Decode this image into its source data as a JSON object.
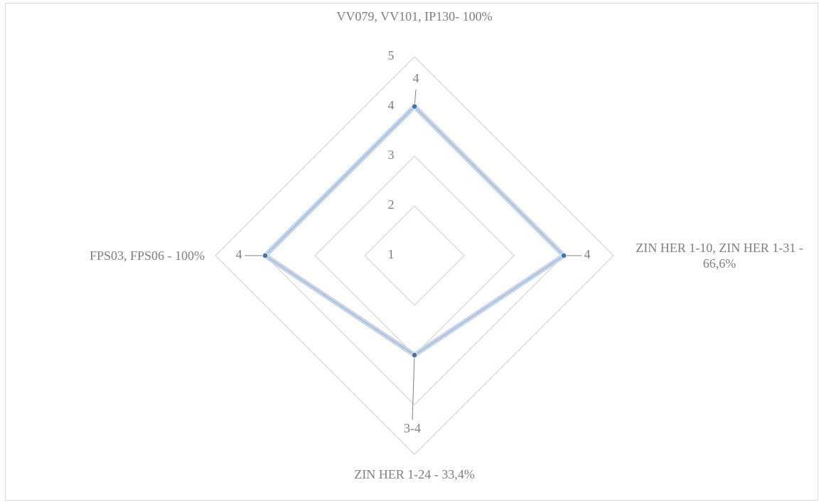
{
  "chart_data": {
    "type": "radar",
    "categories": [
      "VV079, VV101, IP130- 100%",
      "ZIN HER 1-10, ZIN HER 1-31 - 66,6%",
      "ZIN HER 1-24 - 33,4%",
      "FPS03, FPS06 - 100%"
    ],
    "series": [
      {
        "color": "#4a72a8",
        "values": [
          4,
          4,
          3,
          4
        ],
        "value_labels": [
          "4",
          "4",
          "3-4",
          "4"
        ]
      }
    ],
    "ylim": [
      1,
      5
    ],
    "yticks": [
      1,
      2,
      3,
      4,
      5
    ],
    "grid": true
  }
}
